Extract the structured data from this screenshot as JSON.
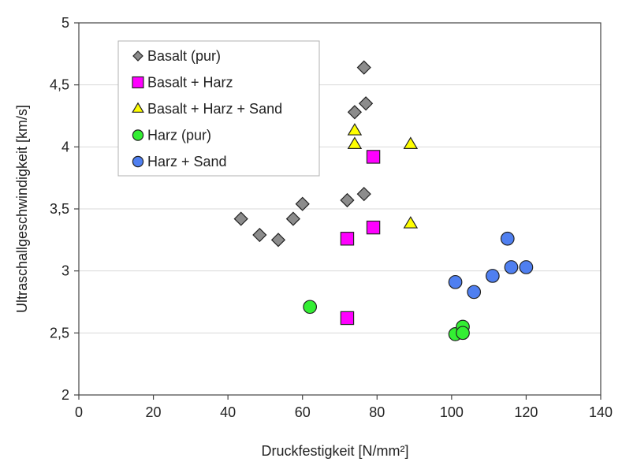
{
  "chart_data": {
    "type": "scatter",
    "title": "",
    "xlabel": "Druckfestigkeit [N/mm²]",
    "ylabel": "Ultraschallgeschwindigkeit [km/s]",
    "xlim": [
      0,
      140
    ],
    "ylim": [
      2,
      5
    ],
    "x_ticks": [
      "0",
      "20",
      "40",
      "60",
      "80",
      "100",
      "120",
      "140"
    ],
    "x_tick_values": [
      0,
      20,
      40,
      60,
      80,
      100,
      120,
      140
    ],
    "y_ticks": [
      "2",
      "2,5",
      "3",
      "3,5",
      "4",
      "4,5",
      "5"
    ],
    "y_tick_values": [
      2,
      2.5,
      3,
      3.5,
      4,
      4.5,
      5
    ],
    "grid": "horizontal",
    "legend_position": "top-left",
    "series": [
      {
        "name": "Basalt (pur)",
        "marker": "diamond",
        "color": "#8c8c8c",
        "points": [
          [
            43.5,
            3.42
          ],
          [
            48.5,
            3.29
          ],
          [
            53.5,
            3.25
          ],
          [
            57.5,
            3.42
          ],
          [
            60,
            3.54
          ],
          [
            72,
            3.57
          ],
          [
            74,
            4.28
          ],
          [
            76.5,
            4.64
          ],
          [
            76.5,
            3.62
          ],
          [
            77,
            4.35
          ]
        ]
      },
      {
        "name": "Basalt + Harz",
        "marker": "square",
        "color": "#ff00ff",
        "points": [
          [
            72,
            3.26
          ],
          [
            79,
            3.35
          ],
          [
            79,
            3.92
          ],
          [
            72,
            2.62
          ]
        ]
      },
      {
        "name": "Basalt + Harz + Sand",
        "marker": "triangle",
        "color": "#ffff00",
        "points": [
          [
            74,
            4.13
          ],
          [
            74,
            4.02
          ],
          [
            89,
            4.02
          ],
          [
            89,
            3.38
          ]
        ]
      },
      {
        "name": "Harz (pur)",
        "marker": "circle",
        "color": "#33ee33",
        "points": [
          [
            62,
            2.71
          ],
          [
            101,
            2.49
          ],
          [
            103,
            2.55
          ],
          [
            103,
            2.5
          ]
        ]
      },
      {
        "name": "Harz + Sand",
        "marker": "circle",
        "color": "#4f7ff0",
        "points": [
          [
            101,
            2.91
          ],
          [
            106,
            2.83
          ],
          [
            111,
            2.96
          ],
          [
            115,
            3.26
          ],
          [
            116,
            3.03
          ],
          [
            120,
            3.03
          ]
        ]
      }
    ]
  }
}
